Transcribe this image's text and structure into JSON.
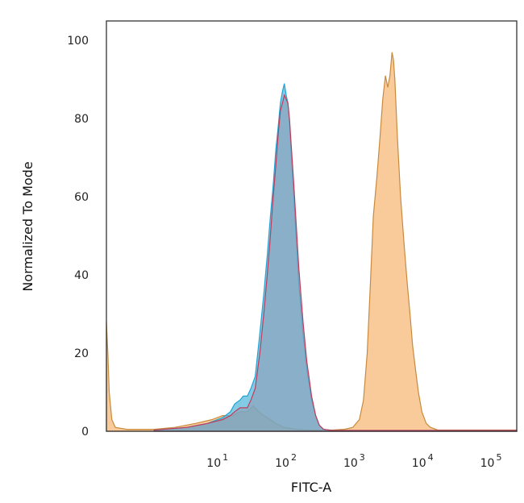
{
  "chart_data": {
    "type": "area",
    "xlabel": "FITC-A",
    "ylabel": "Normalized To Mode",
    "x_scale": "log",
    "xlim": [
      0.2,
      200000
    ],
    "ylim": [
      0,
      105
    ],
    "y_ticks": [
      {
        "value": 0,
        "label": "0"
      },
      {
        "value": 20,
        "label": "20"
      },
      {
        "value": 40,
        "label": "40"
      },
      {
        "value": 60,
        "label": "60"
      },
      {
        "value": 80,
        "label": "80"
      },
      {
        "value": 100,
        "label": "100"
      }
    ],
    "x_ticks": [
      {
        "value": 10,
        "base": "10",
        "exp": "1"
      },
      {
        "value": 100,
        "base": "10",
        "exp": "2"
      },
      {
        "value": 1000,
        "base": "10",
        "exp": "3"
      },
      {
        "value": 10000,
        "base": "10",
        "exp": "4"
      },
      {
        "value": 100000,
        "base": "10",
        "exp": "5"
      }
    ],
    "grid": false,
    "legend": "none",
    "series": [
      {
        "fill": "#f7b97a",
        "stroke": "#c88a3c",
        "fill_opacity": 0.75,
        "points": [
          [
            0.2,
            28
          ],
          [
            0.21,
            20
          ],
          [
            0.22,
            10
          ],
          [
            0.24,
            3
          ],
          [
            0.27,
            1
          ],
          [
            0.4,
            0.5
          ],
          [
            1,
            0.5
          ],
          [
            2,
            1
          ],
          [
            4,
            2
          ],
          [
            7,
            3
          ],
          [
            10,
            4
          ],
          [
            14,
            4
          ],
          [
            18,
            5
          ],
          [
            23,
            5
          ],
          [
            28,
            6.5
          ],
          [
            34,
            5
          ],
          [
            40,
            4
          ],
          [
            50,
            3
          ],
          [
            60,
            2
          ],
          [
            80,
            1
          ],
          [
            120,
            0.5
          ],
          [
            200,
            0.3
          ],
          [
            400,
            0.3
          ],
          [
            600,
            0.5
          ],
          [
            800,
            1
          ],
          [
            1000,
            3
          ],
          [
            1150,
            8
          ],
          [
            1300,
            20
          ],
          [
            1450,
            38
          ],
          [
            1600,
            55
          ],
          [
            1800,
            65
          ],
          [
            2000,
            75
          ],
          [
            2200,
            85
          ],
          [
            2400,
            91
          ],
          [
            2600,
            88
          ],
          [
            2800,
            91
          ],
          [
            3000,
            97
          ],
          [
            3150,
            95
          ],
          [
            3300,
            90
          ],
          [
            3600,
            75
          ],
          [
            4000,
            60
          ],
          [
            4500,
            48
          ],
          [
            5000,
            38
          ],
          [
            5500,
            30
          ],
          [
            6000,
            22
          ],
          [
            6600,
            16
          ],
          [
            7300,
            10
          ],
          [
            8200,
            5
          ],
          [
            9500,
            2
          ],
          [
            11000,
            1
          ],
          [
            14000,
            0.3
          ],
          [
            200000,
            0.3
          ]
        ]
      },
      {
        "fill": "#4fb3d9",
        "stroke": "#1fa4d6",
        "fill_opacity": 0.7,
        "points": [
          [
            1,
            0.3
          ],
          [
            3,
            1
          ],
          [
            6,
            2
          ],
          [
            10,
            3.5
          ],
          [
            13,
            5
          ],
          [
            15,
            7
          ],
          [
            18,
            8
          ],
          [
            20,
            9
          ],
          [
            23,
            9
          ],
          [
            26,
            11
          ],
          [
            30,
            14
          ],
          [
            35,
            25
          ],
          [
            40,
            35
          ],
          [
            45,
            45
          ],
          [
            50,
            55
          ],
          [
            55,
            63
          ],
          [
            60,
            72
          ],
          [
            65,
            78
          ],
          [
            70,
            84
          ],
          [
            75,
            87
          ],
          [
            80,
            89
          ],
          [
            85,
            86
          ],
          [
            90,
            84
          ],
          [
            95,
            79
          ],
          [
            100,
            72
          ],
          [
            110,
            60
          ],
          [
            120,
            48
          ],
          [
            130,
            38
          ],
          [
            150,
            25
          ],
          [
            170,
            16
          ],
          [
            200,
            8
          ],
          [
            230,
            4
          ],
          [
            260,
            1.5
          ],
          [
            300,
            0.5
          ],
          [
            400,
            0.2
          ],
          [
            200000,
            0.2
          ]
        ]
      },
      {
        "fill": "#8d9fb5",
        "stroke": "#c23b5a",
        "fill_opacity": 0.6,
        "points": [
          [
            1,
            0.3
          ],
          [
            3,
            1
          ],
          [
            6,
            2
          ],
          [
            10,
            3
          ],
          [
            13,
            4
          ],
          [
            15,
            5
          ],
          [
            18,
            6
          ],
          [
            20,
            6
          ],
          [
            23,
            6
          ],
          [
            26,
            8
          ],
          [
            30,
            11
          ],
          [
            35,
            20
          ],
          [
            40,
            30
          ],
          [
            45,
            40
          ],
          [
            50,
            50
          ],
          [
            55,
            60
          ],
          [
            60,
            68
          ],
          [
            65,
            76
          ],
          [
            70,
            82
          ],
          [
            75,
            84
          ],
          [
            80,
            86
          ],
          [
            85,
            85
          ],
          [
            90,
            84
          ],
          [
            95,
            80
          ],
          [
            100,
            74
          ],
          [
            110,
            63
          ],
          [
            120,
            52
          ],
          [
            130,
            42
          ],
          [
            150,
            28
          ],
          [
            170,
            18
          ],
          [
            200,
            9
          ],
          [
            230,
            4
          ],
          [
            260,
            1.5
          ],
          [
            300,
            0.5
          ],
          [
            400,
            0.2
          ],
          [
            200000,
            0.2
          ]
        ]
      }
    ]
  }
}
